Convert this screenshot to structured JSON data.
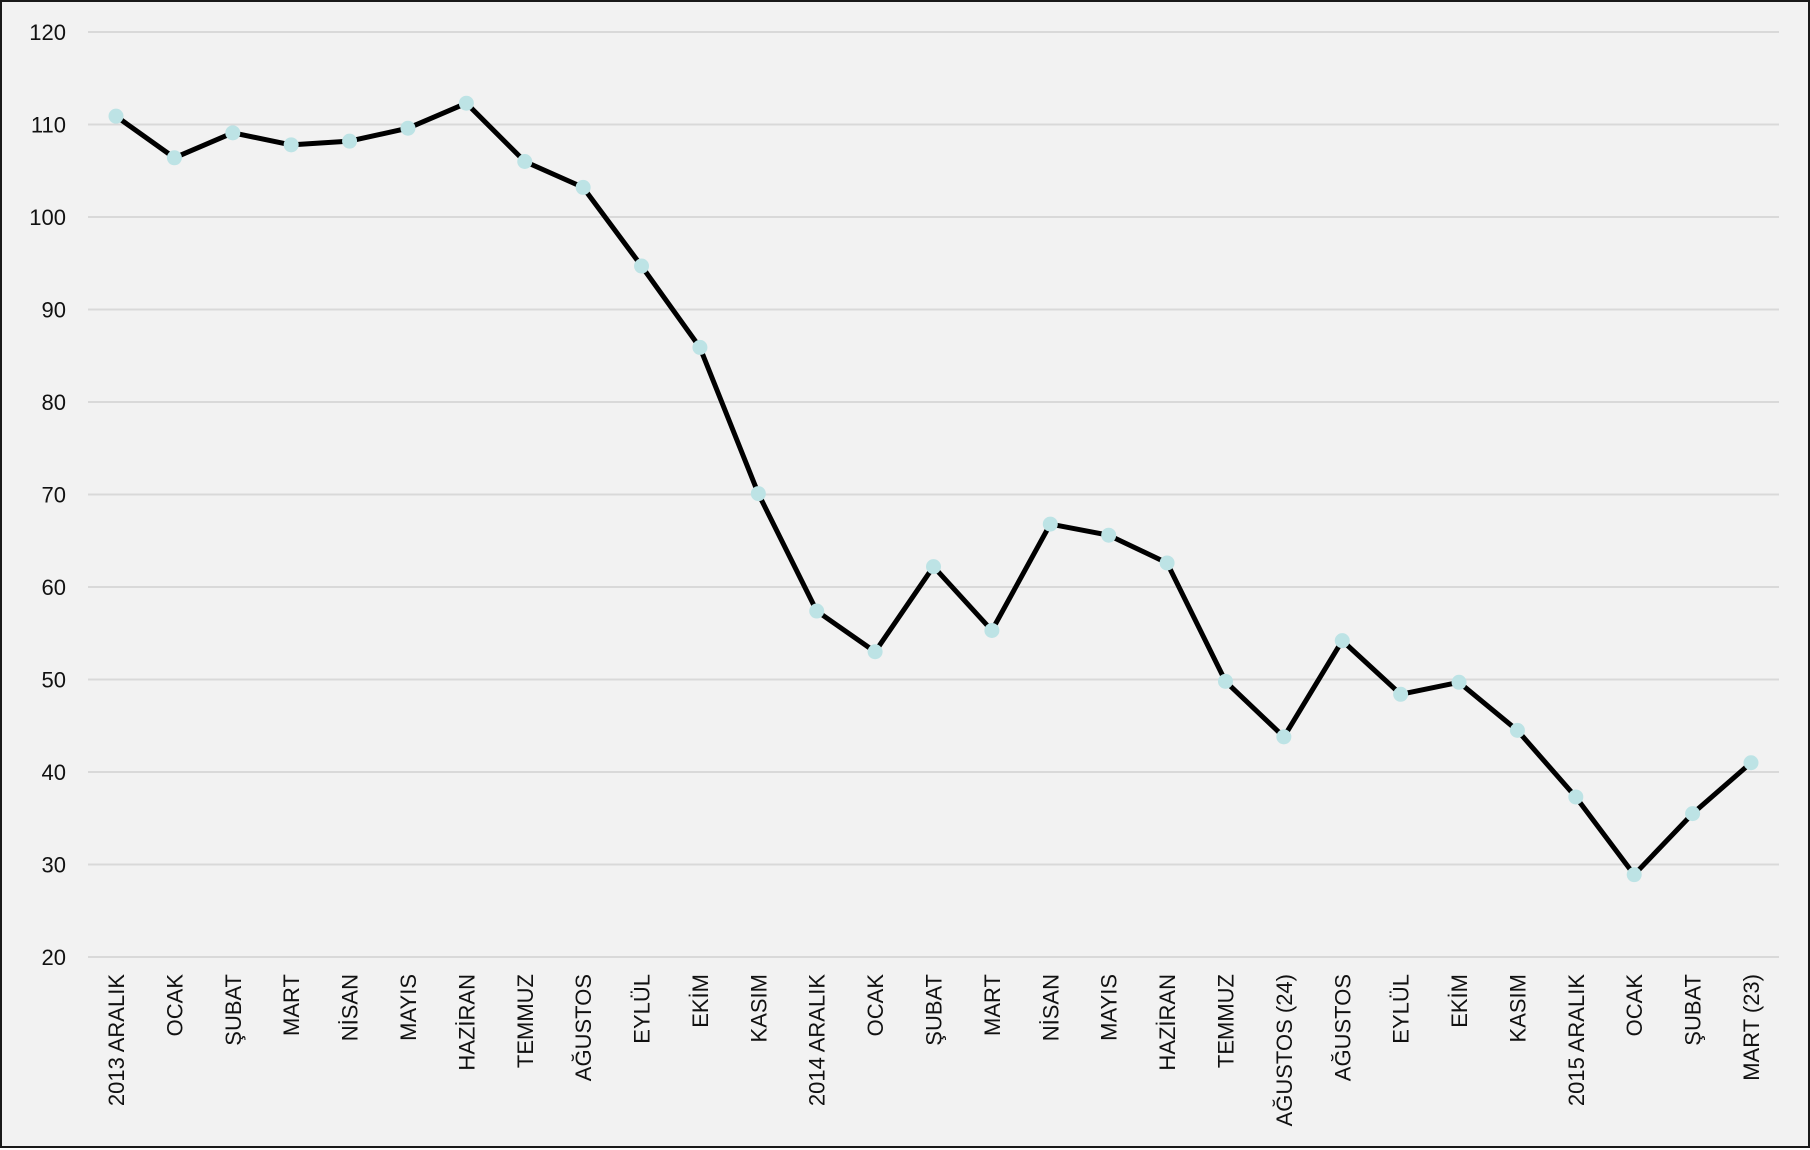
{
  "chart_data": {
    "type": "line",
    "title": "",
    "xlabel": "",
    "ylabel": "",
    "ylim": [
      20,
      120
    ],
    "yticks": [
      20,
      30,
      40,
      50,
      60,
      70,
      80,
      90,
      100,
      110,
      120
    ],
    "grid": true,
    "legend": "none",
    "categories": [
      "2013 ARALIK",
      "OCAK",
      "ŞUBAT",
      "MART",
      "NİSAN",
      "MAYIS",
      "HAZİRAN",
      "TEMMUZ",
      "AĞUSTOS",
      "EYLÜL",
      "EKİM",
      "KASIM",
      "2014 ARALIK",
      "OCAK",
      "ŞUBAT",
      "MART",
      "NİSAN",
      "MAYIS",
      "HAZİRAN",
      "TEMMUZ",
      "AĞUSTOS (24)",
      "AĞUSTOS",
      "EYLÜL",
      "EKİM",
      "KASIM",
      "2015 ARALIK",
      "OCAK",
      "ŞUBAT",
      "MART (23)"
    ],
    "series": [
      {
        "values": [
          110.9,
          106.4,
          109.1,
          107.8,
          108.2,
          109.6,
          112.3,
          106.0,
          103.2,
          94.7,
          85.9,
          70.1,
          57.4,
          53.0,
          62.2,
          55.3,
          66.8,
          65.6,
          62.6,
          49.8,
          43.8,
          54.2,
          48.4,
          49.7,
          44.5,
          37.3,
          28.9,
          35.5,
          41.0
        ]
      }
    ],
    "colors": {
      "background": "#f2f2f2",
      "line": "#000000",
      "marker": "#bde3e5",
      "grid": "#d9d9d9",
      "text": "#111111"
    }
  }
}
